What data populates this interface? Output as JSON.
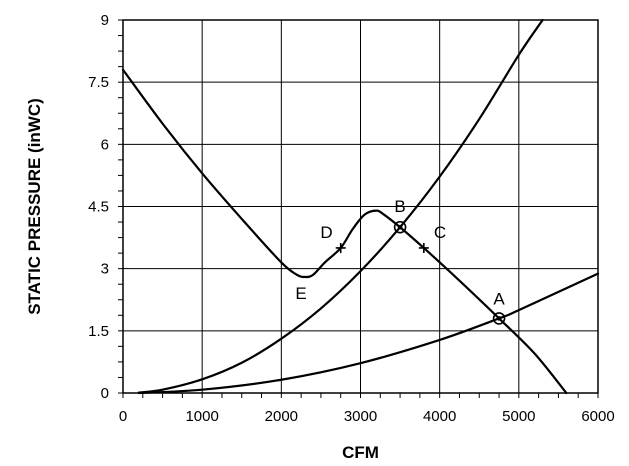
{
  "chart_data": {
    "type": "line",
    "xlabel": "CFM",
    "ylabel": "STATIC PRESSURE (inWC)",
    "xlim": [
      0,
      6000
    ],
    "ylim": [
      0,
      9
    ],
    "x_ticks": [
      0,
      1000,
      2000,
      3000,
      4000,
      5000,
      6000
    ],
    "y_ticks": [
      0,
      1.5,
      3,
      4.5,
      6,
      7.5,
      9
    ],
    "x_tick_labels": [
      "0",
      "1000",
      "2000",
      "3000",
      "4000",
      "5000",
      "6000"
    ],
    "y_tick_labels": [
      "0",
      "1.5",
      "3",
      "4.5",
      "6",
      "7.5",
      "9"
    ],
    "grid": true,
    "series": [
      {
        "x": [
          0,
          500,
          1000,
          1500,
          2000,
          2200,
          2300,
          2400,
          2550,
          2750,
          2900,
          3050,
          3200,
          3300,
          3500,
          3800,
          4200,
          4750,
          5200,
          5600
        ],
        "y": [
          7.8,
          6.5,
          5.3,
          4.2,
          3.15,
          2.85,
          2.8,
          2.85,
          3.15,
          3.5,
          3.95,
          4.3,
          4.4,
          4.3,
          4.0,
          3.5,
          2.8,
          1.8,
          0.95,
          0.0
        ]
      },
      {
        "x": [
          200,
          500,
          1000,
          1500,
          2000,
          2500,
          3000,
          3500,
          4000,
          4500,
          5000,
          5300
        ],
        "y": [
          0.01,
          0.08,
          0.33,
          0.73,
          1.31,
          2.04,
          2.94,
          4.0,
          5.22,
          6.61,
          8.16,
          9.0
        ]
      },
      {
        "x": [
          200,
          1000,
          2000,
          3000,
          4000,
          4750,
          5000,
          6000
        ],
        "y": [
          0.0,
          0.08,
          0.32,
          0.72,
          1.28,
          1.8,
          2.0,
          2.88
        ]
      }
    ],
    "points": [
      {
        "label": "A",
        "x": 4750,
        "y": 1.8,
        "marker": "circle"
      },
      {
        "label": "B",
        "x": 3500,
        "y": 4.0,
        "marker": "circle"
      },
      {
        "label": "C",
        "x": 3800,
        "y": 3.5,
        "marker": "plus"
      },
      {
        "label": "D",
        "x": 2750,
        "y": 3.5,
        "marker": "plus"
      },
      {
        "label": "E",
        "x": 2300,
        "y": 2.8,
        "marker": "none"
      }
    ]
  }
}
